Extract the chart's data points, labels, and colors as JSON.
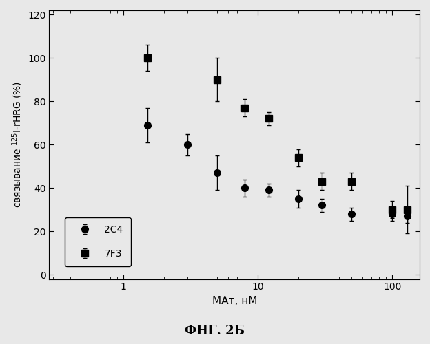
{
  "title": "",
  "xlabel": "МАт, нМ",
  "ylabel": "связывание $^{125}$I-rHRG (%)",
  "caption": "ФНГ. 2Б",
  "xlim_log": [
    0.28,
    160
  ],
  "ylim": [
    -2,
    122
  ],
  "yticks": [
    0,
    20,
    40,
    60,
    80,
    100,
    120
  ],
  "xticks": [
    1,
    10,
    100
  ],
  "series_2C4": {
    "label": "2C4",
    "x": [
      1.5,
      3.0,
      5.0,
      8.0,
      12.0,
      20.0,
      30.0,
      50.0,
      100.0,
      130.0
    ],
    "y": [
      69,
      60,
      47,
      40,
      39,
      35,
      32,
      28,
      28,
      27
    ],
    "yerr": [
      8,
      5,
      8,
      4,
      3,
      4,
      3,
      3,
      3,
      3
    ],
    "start_y": 90,
    "start_x": 0.3,
    "marker": "o",
    "color": "black",
    "markersize": 7
  },
  "series_7F3": {
    "label": "7F3",
    "x": [
      1.5,
      5.0,
      8.0,
      12.0,
      20.0,
      30.0,
      50.0,
      100.0,
      130.0
    ],
    "y": [
      100,
      90,
      77,
      72,
      54,
      43,
      43,
      30,
      30
    ],
    "yerr": [
      6,
      10,
      4,
      3,
      4,
      4,
      4,
      4,
      11
    ],
    "start_y": 100,
    "start_x": 0.3,
    "marker": "s",
    "color": "black",
    "markersize": 7
  },
  "background_color": "#e8e8e8",
  "grid": false,
  "legend_loc": "lower left",
  "figsize": [
    6.24,
    5.0
  ],
  "dpi": 100
}
